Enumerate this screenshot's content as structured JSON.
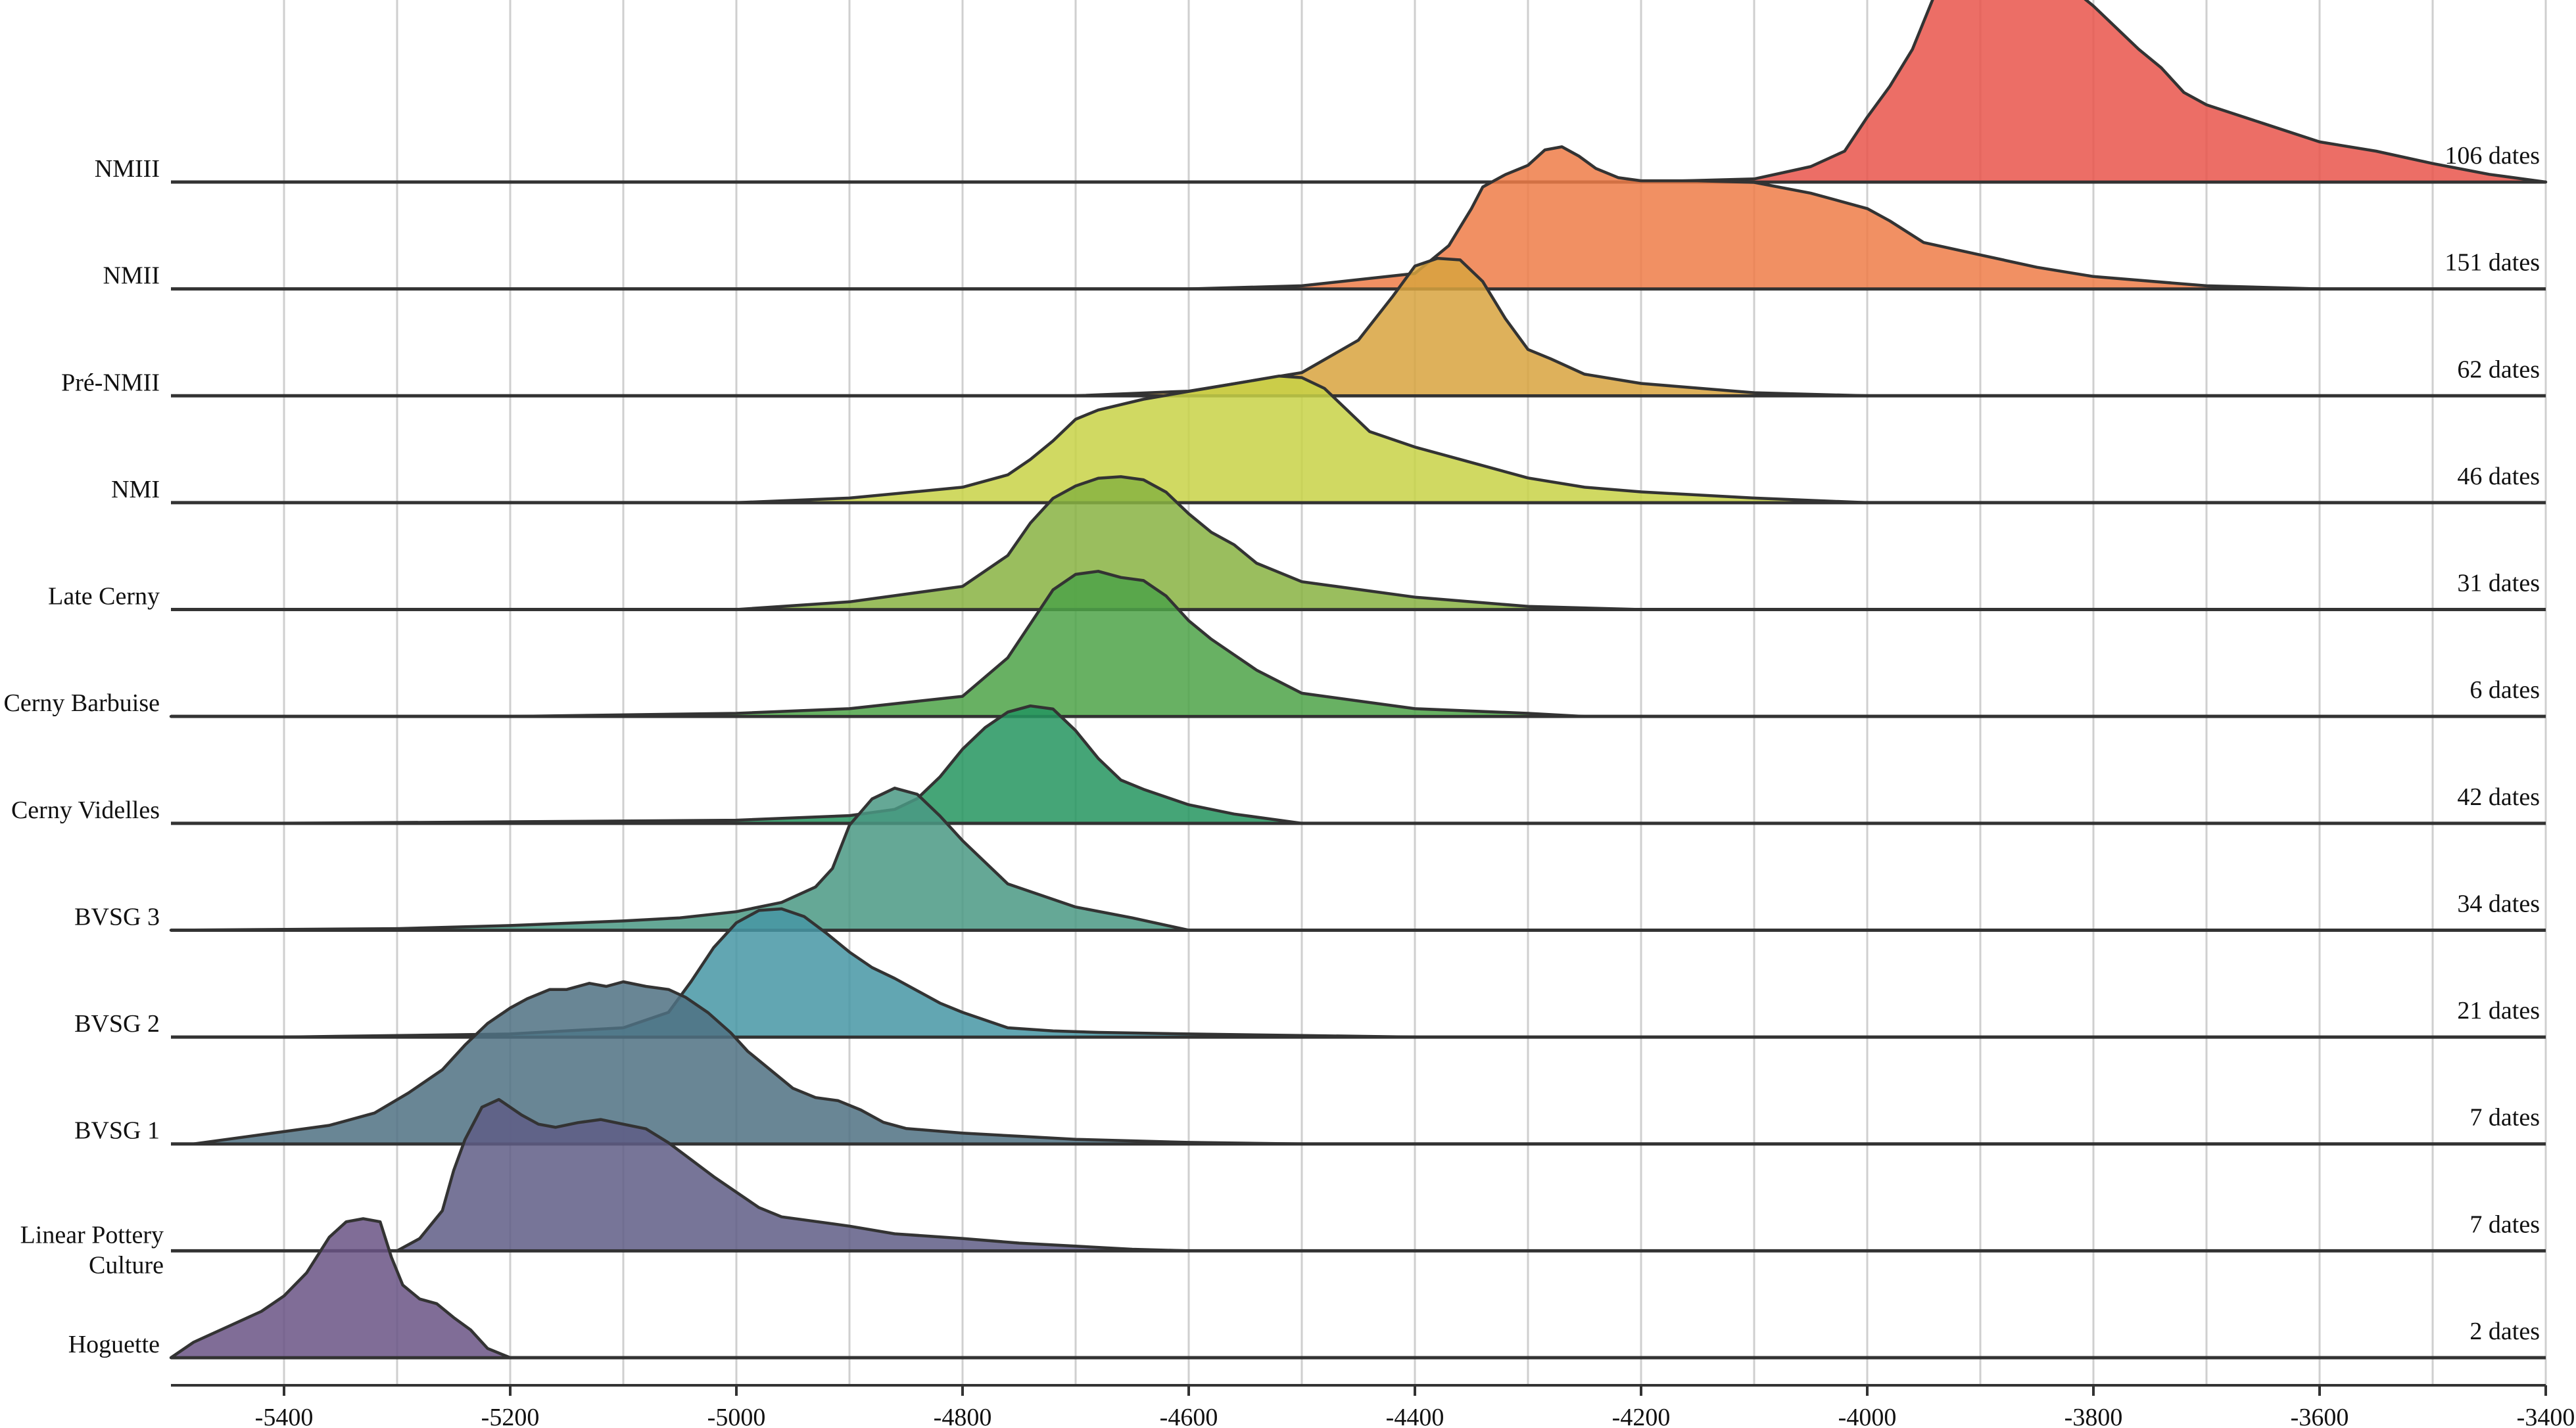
{
  "chart_data": {
    "type": "ridgeline",
    "title": "",
    "xlabel": "",
    "ylabel": "",
    "xlim": [
      -5500,
      -3400
    ],
    "x_ticks": [
      -5400,
      -5200,
      -5000,
      -4800,
      -4600,
      -4400,
      -4200,
      -4000,
      -3800,
      -3600,
      -3400
    ],
    "grid": true,
    "series": [
      {
        "name": "Hoguette",
        "count_label": "2 dates",
        "color": "#6a5485",
        "x": [
          -5500,
          -5480,
          -5450,
          -5420,
          -5400,
          -5380,
          -5360,
          -5345,
          -5330,
          -5315,
          -5305,
          -5295,
          -5280,
          -5265,
          -5250,
          -5235,
          -5220,
          -5200
        ],
        "y": [
          0.0,
          0.1,
          0.2,
          0.3,
          0.4,
          0.55,
          0.78,
          0.88,
          0.9,
          0.88,
          0.65,
          0.47,
          0.38,
          0.35,
          0.26,
          0.18,
          0.06,
          0.0
        ]
      },
      {
        "name": "Linear Pottery\nCulture",
        "count_label": "7 dates",
        "color": "#5f5d86",
        "x": [
          -5300,
          -5280,
          -5260,
          -5250,
          -5240,
          -5225,
          -5210,
          -5190,
          -5175,
          -5160,
          -5140,
          -5120,
          -5100,
          -5080,
          -5060,
          -5040,
          -5020,
          -5000,
          -4980,
          -4960,
          -4930,
          -4900,
          -4860,
          -4800,
          -4750,
          -4700,
          -4650,
          -4600
        ],
        "y": [
          0.0,
          0.08,
          0.26,
          0.52,
          0.72,
          0.93,
          0.98,
          0.88,
          0.82,
          0.8,
          0.83,
          0.85,
          0.82,
          0.79,
          0.7,
          0.59,
          0.48,
          0.38,
          0.28,
          0.22,
          0.19,
          0.16,
          0.11,
          0.08,
          0.05,
          0.03,
          0.01,
          0.0
        ]
      },
      {
        "name": "BVSG 1",
        "count_label": "7 dates",
        "color": "#4f7183",
        "x": [
          -5480,
          -5420,
          -5360,
          -5320,
          -5290,
          -5260,
          -5240,
          -5220,
          -5200,
          -5185,
          -5165,
          -5150,
          -5130,
          -5115,
          -5100,
          -5080,
          -5060,
          -5045,
          -5025,
          -5005,
          -4990,
          -4970,
          -4950,
          -4930,
          -4910,
          -4890,
          -4870,
          -4850,
          -4800,
          -4750,
          -4700,
          -4600,
          -4500
        ],
        "y": [
          0.0,
          0.06,
          0.12,
          0.2,
          0.33,
          0.48,
          0.64,
          0.78,
          0.88,
          0.94,
          1.0,
          1.0,
          1.04,
          1.02,
          1.05,
          1.02,
          1.0,
          0.95,
          0.85,
          0.72,
          0.6,
          0.48,
          0.36,
          0.3,
          0.28,
          0.22,
          0.14,
          0.1,
          0.07,
          0.05,
          0.03,
          0.01,
          0.0
        ]
      },
      {
        "name": "BVSG 2",
        "count_label": "21 dates",
        "color": "#4796a5",
        "x": [
          -5400,
          -5200,
          -5100,
          -5060,
          -5040,
          -5020,
          -5000,
          -4980,
          -4960,
          -4940,
          -4920,
          -4900,
          -4880,
          -4860,
          -4840,
          -4820,
          -4800,
          -4780,
          -4760,
          -4720,
          -4680,
          -4600,
          -4500,
          -4400
        ],
        "y": [
          0.0,
          0.02,
          0.06,
          0.16,
          0.36,
          0.58,
          0.74,
          0.82,
          0.83,
          0.78,
          0.67,
          0.55,
          0.45,
          0.38,
          0.3,
          0.22,
          0.16,
          0.11,
          0.06,
          0.04,
          0.03,
          0.02,
          0.01,
          0.0
        ]
      },
      {
        "name": "BVSG 3",
        "count_label": "34 dates",
        "color": "#4a9984",
        "x": [
          -5500,
          -5300,
          -5200,
          -5100,
          -5050,
          -5000,
          -4960,
          -4930,
          -4915,
          -4900,
          -4880,
          -4860,
          -4840,
          -4820,
          -4800,
          -4780,
          -4760,
          -4720,
          -4700,
          -4650,
          -4600
        ],
        "y": [
          0.0,
          0.01,
          0.03,
          0.06,
          0.08,
          0.12,
          0.18,
          0.28,
          0.4,
          0.68,
          0.85,
          0.92,
          0.88,
          0.74,
          0.58,
          0.44,
          0.3,
          0.2,
          0.15,
          0.08,
          0.0
        ]
      },
      {
        "name": "Cerny Videlles",
        "count_label": "42 dates",
        "color": "#25955f",
        "x": [
          -5400,
          -5200,
          -5000,
          -4900,
          -4860,
          -4840,
          -4820,
          -4800,
          -4780,
          -4760,
          -4740,
          -4720,
          -4700,
          -4680,
          -4660,
          -4640,
          -4620,
          -4600,
          -4560,
          -4520,
          -4500
        ],
        "y": [
          0.0,
          0.01,
          0.02,
          0.05,
          0.09,
          0.16,
          0.3,
          0.48,
          0.62,
          0.72,
          0.76,
          0.74,
          0.6,
          0.42,
          0.28,
          0.22,
          0.17,
          0.12,
          0.06,
          0.02,
          0.0
        ]
      },
      {
        "name": "Cerny Barbuise",
        "count_label": "6 dates",
        "color": "#4ea348",
        "x": [
          -5500,
          -5200,
          -5000,
          -4900,
          -4800,
          -4760,
          -4740,
          -4720,
          -4700,
          -4680,
          -4660,
          -4640,
          -4620,
          -4600,
          -4580,
          -4560,
          -4540,
          -4500,
          -4400,
          -4300,
          -4250
        ],
        "y": [
          0.0,
          0.0,
          0.02,
          0.05,
          0.13,
          0.38,
          0.6,
          0.82,
          0.92,
          0.94,
          0.9,
          0.88,
          0.78,
          0.62,
          0.5,
          0.4,
          0.3,
          0.15,
          0.05,
          0.02,
          0.0
        ]
      },
      {
        "name": "Late Cerny",
        "count_label": "31 dates",
        "color": "#88b342",
        "x": [
          -5000,
          -4900,
          -4800,
          -4760,
          -4740,
          -4720,
          -4700,
          -4680,
          -4660,
          -4640,
          -4620,
          -4600,
          -4580,
          -4560,
          -4540,
          -4520,
          -4500,
          -4400,
          -4300,
          -4200
        ],
        "y": [
          0.0,
          0.05,
          0.15,
          0.35,
          0.56,
          0.72,
          0.8,
          0.85,
          0.86,
          0.84,
          0.76,
          0.62,
          0.5,
          0.42,
          0.3,
          0.24,
          0.18,
          0.08,
          0.02,
          0.0
        ]
      },
      {
        "name": "NMI",
        "count_label": "46 dates",
        "color": "#c8d246",
        "x": [
          -5000,
          -4900,
          -4800,
          -4760,
          -4740,
          -4720,
          -4700,
          -4680,
          -4640,
          -4600,
          -4560,
          -4520,
          -4500,
          -4480,
          -4460,
          -4440,
          -4400,
          -4360,
          -4330,
          -4300,
          -4250,
          -4200,
          -4100,
          -4000
        ],
        "y": [
          0.0,
          0.03,
          0.1,
          0.18,
          0.28,
          0.4,
          0.54,
          0.6,
          0.67,
          0.72,
          0.77,
          0.82,
          0.81,
          0.74,
          0.6,
          0.46,
          0.36,
          0.28,
          0.22,
          0.16,
          0.1,
          0.07,
          0.03,
          0.0
        ]
      },
      {
        "name": "Pré-NMII",
        "count_label": "62 dates",
        "color": "#d8a33e",
        "x": [
          -4700,
          -4600,
          -4500,
          -4450,
          -4420,
          -4400,
          -4380,
          -4360,
          -4340,
          -4320,
          -4300,
          -4280,
          -4250,
          -4200,
          -4100,
          -4000
        ],
        "y": [
          0.0,
          0.03,
          0.15,
          0.36,
          0.64,
          0.84,
          0.89,
          0.88,
          0.74,
          0.5,
          0.3,
          0.24,
          0.14,
          0.08,
          0.02,
          0.0
        ]
      },
      {
        "name": "NMII",
        "count_label": "151 dates",
        "color": "#ee7d48",
        "x": [
          -4600,
          -4500,
          -4400,
          -4370,
          -4350,
          -4340,
          -4320,
          -4300,
          -4285,
          -4270,
          -4255,
          -4240,
          -4220,
          -4200,
          -4150,
          -4100,
          -4050,
          -4000,
          -3980,
          -3950,
          -3900,
          -3850,
          -3800,
          -3700,
          -3600
        ],
        "y": [
          0.0,
          0.02,
          0.1,
          0.28,
          0.52,
          0.66,
          0.74,
          0.8,
          0.9,
          0.92,
          0.86,
          0.78,
          0.72,
          0.7,
          0.7,
          0.69,
          0.62,
          0.52,
          0.44,
          0.3,
          0.22,
          0.14,
          0.08,
          0.02,
          0.0
        ]
      },
      {
        "name": "NMIII",
        "count_label": "106 dates",
        "color": "#e9554b",
        "x": [
          -4200,
          -4100,
          -4050,
          -4020,
          -4000,
          -3980,
          -3960,
          -3940,
          -3920,
          -3900,
          -3880,
          -3860,
          -3840,
          -3820,
          -3800,
          -3780,
          -3760,
          -3740,
          -3720,
          -3700,
          -3650,
          -3600,
          -3550,
          -3500,
          -3450,
          -3400
        ],
        "y": [
          0.0,
          0.02,
          0.1,
          0.2,
          0.42,
          0.62,
          0.86,
          1.22,
          1.32,
          1.3,
          1.34,
          1.38,
          1.36,
          1.26,
          1.14,
          1.0,
          0.86,
          0.74,
          0.58,
          0.5,
          0.38,
          0.26,
          0.2,
          0.12,
          0.05,
          0.0
        ]
      }
    ]
  }
}
